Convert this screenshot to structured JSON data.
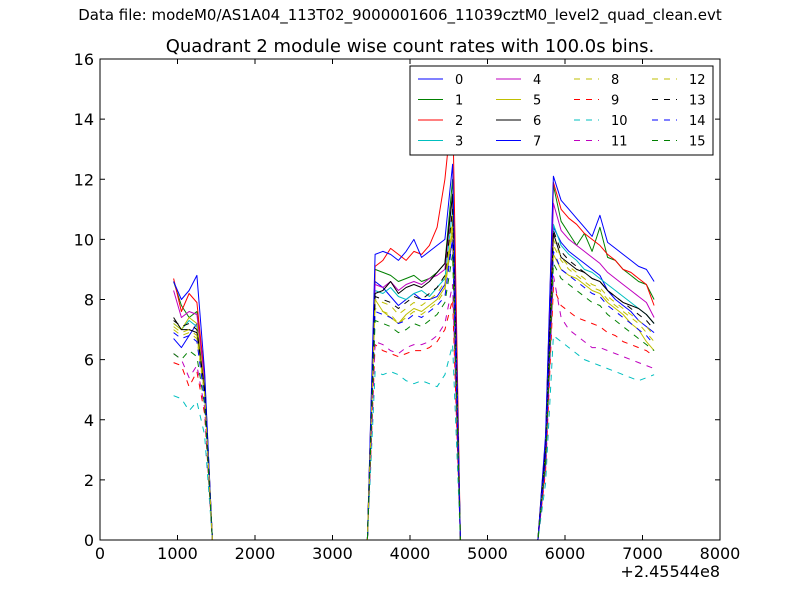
{
  "figure": {
    "suptitle": "Data file: modeM0/AS1A04_113T02_9000001606_11039cztM0_level2_quad_clean.evt"
  },
  "chart_data": {
    "type": "line",
    "title": "Quadrant 2 module wise count rates with 100.0s bins.",
    "xlabel": "",
    "ylabel": "",
    "x_offset_label": "+2.45544e8",
    "xlim": [
      0,
      8000
    ],
    "ylim": [
      0,
      16
    ],
    "xticks": [
      0,
      1000,
      2000,
      3000,
      4000,
      5000,
      6000,
      7000,
      8000
    ],
    "yticks": [
      0,
      2,
      4,
      6,
      8,
      10,
      12,
      14,
      16
    ],
    "legend_position": "top-right",
    "x": [
      950,
      1050,
      1150,
      1250,
      1350,
      1450,
      1550,
      1650,
      1750,
      1850,
      1950,
      2050,
      2150,
      2250,
      2350,
      2450,
      2550,
      2650,
      2750,
      2850,
      2950,
      3050,
      3150,
      3250,
      3350,
      3450,
      3550,
      3650,
      3750,
      3850,
      3950,
      4050,
      4150,
      4250,
      4350,
      4450,
      4550,
      4650,
      4750,
      4850,
      4950,
      5050,
      5150,
      5250,
      5350,
      5450,
      5550,
      5650,
      5750,
      5850,
      5950,
      6050,
      6150,
      6250,
      6350,
      6450,
      6550,
      6650,
      6750,
      6850,
      6950,
      7050,
      7150
    ],
    "series": [
      {
        "name": "0",
        "color": "#0000ff",
        "dash": "solid",
        "values": [
          6.7,
          6.4,
          6.8,
          7.2,
          5.0,
          0,
          0,
          0,
          0,
          0,
          0,
          0,
          0,
          0,
          0,
          0,
          0,
          0,
          0,
          0,
          0,
          0,
          0,
          0,
          0,
          0,
          8.6,
          8.4,
          8.1,
          7.8,
          8.0,
          8.2,
          8.0,
          8.0,
          8.1,
          8.5,
          10.0,
          0,
          0,
          0,
          0,
          0,
          0,
          0,
          0,
          0,
          0,
          0,
          3.0,
          10.4,
          9.9,
          9.6,
          9.4,
          9.2,
          9.0,
          8.8,
          8.3,
          8.0,
          7.8,
          7.6,
          7.3,
          7.1,
          6.9
        ]
      },
      {
        "name": "1",
        "color": "#008000",
        "dash": "solid",
        "values": [
          8.6,
          7.8,
          7.4,
          7.6,
          5.5,
          0,
          0,
          0,
          0,
          0,
          0,
          0,
          0,
          0,
          0,
          0,
          0,
          0,
          0,
          0,
          0,
          0,
          0,
          0,
          0,
          0,
          9.0,
          8.9,
          8.8,
          8.6,
          8.7,
          8.8,
          8.6,
          8.7,
          8.9,
          9.2,
          12.0,
          0,
          0,
          0,
          0,
          0,
          0,
          0,
          0,
          0,
          0,
          0,
          3.3,
          11.8,
          10.6,
          10.2,
          9.8,
          10.2,
          9.6,
          10.4,
          9.4,
          9.3,
          9.0,
          8.8,
          8.6,
          8.5,
          8.0
        ]
      },
      {
        "name": "2",
        "color": "#ff0000",
        "dash": "solid",
        "values": [
          8.7,
          7.6,
          8.2,
          7.9,
          5.4,
          0,
          0,
          0,
          0,
          0,
          0,
          0,
          0,
          0,
          0,
          0,
          0,
          0,
          0,
          0,
          0,
          0,
          0,
          0,
          0,
          0,
          9.1,
          9.3,
          9.7,
          9.5,
          9.3,
          9.6,
          9.5,
          9.8,
          10.4,
          12.0,
          14.5,
          0,
          0,
          0,
          0,
          0,
          0,
          0,
          0,
          0,
          0,
          0,
          3.4,
          11.9,
          11.0,
          10.7,
          10.5,
          10.2,
          10.0,
          9.8,
          9.5,
          9.3,
          9.0,
          8.9,
          8.7,
          8.5,
          7.8
        ]
      },
      {
        "name": "3",
        "color": "#00bfbf",
        "dash": "solid",
        "values": [
          7.2,
          7.0,
          7.3,
          7.1,
          5.2,
          0,
          0,
          0,
          0,
          0,
          0,
          0,
          0,
          0,
          0,
          0,
          0,
          0,
          0,
          0,
          0,
          0,
          0,
          0,
          0,
          0,
          8.3,
          8.2,
          8.4,
          8.1,
          8.0,
          8.2,
          8.3,
          8.1,
          8.4,
          8.7,
          11.0,
          0,
          0,
          0,
          0,
          0,
          0,
          0,
          0,
          0,
          0,
          0,
          3.0,
          10.5,
          9.8,
          9.5,
          9.3,
          9.0,
          8.9,
          8.7,
          8.5,
          8.3,
          8.1,
          7.9,
          7.7,
          7.5,
          7.2
        ]
      },
      {
        "name": "4",
        "color": "#bf00bf",
        "dash": "solid",
        "values": [
          8.3,
          7.4,
          7.6,
          7.5,
          5.3,
          0,
          0,
          0,
          0,
          0,
          0,
          0,
          0,
          0,
          0,
          0,
          0,
          0,
          0,
          0,
          0,
          0,
          0,
          0,
          0,
          0,
          8.5,
          8.4,
          8.6,
          8.3,
          8.5,
          8.6,
          8.5,
          8.7,
          8.8,
          9.0,
          11.5,
          0,
          0,
          0,
          0,
          0,
          0,
          0,
          0,
          0,
          0,
          0,
          3.2,
          11.2,
          10.3,
          10.0,
          9.8,
          9.6,
          9.4,
          9.2,
          8.9,
          8.7,
          8.5,
          8.3,
          8.1,
          7.9,
          7.4
        ]
      },
      {
        "name": "5",
        "color": "#bfbf00",
        "dash": "solid",
        "values": [
          7.2,
          7.0,
          7.4,
          7.2,
          5.1,
          0,
          0,
          0,
          0,
          0,
          0,
          0,
          0,
          0,
          0,
          0,
          0,
          0,
          0,
          0,
          0,
          0,
          0,
          0,
          0,
          0,
          8.0,
          7.6,
          7.4,
          7.2,
          7.5,
          7.7,
          7.6,
          7.8,
          8.0,
          8.4,
          10.5,
          0,
          0,
          0,
          0,
          0,
          0,
          0,
          0,
          0,
          0,
          0,
          2.8,
          9.5,
          9.0,
          8.8,
          8.7,
          8.5,
          8.3,
          8.2,
          7.9,
          7.7,
          7.5,
          7.2,
          7.0,
          6.6,
          6.3
        ]
      },
      {
        "name": "6",
        "color": "#000000",
        "dash": "solid",
        "values": [
          7.4,
          7.0,
          7.0,
          6.9,
          5.0,
          0,
          0,
          0,
          0,
          0,
          0,
          0,
          0,
          0,
          0,
          0,
          0,
          0,
          0,
          0,
          0,
          0,
          0,
          0,
          0,
          0,
          8.2,
          8.3,
          8.6,
          8.2,
          8.4,
          8.5,
          8.4,
          8.6,
          8.9,
          9.2,
          11.5,
          0,
          0,
          0,
          0,
          0,
          0,
          0,
          0,
          0,
          0,
          0,
          3.0,
          10.2,
          9.4,
          9.2,
          9.0,
          8.9,
          8.7,
          8.6,
          8.3,
          8.1,
          7.9,
          7.8,
          7.7,
          7.5,
          7.2
        ]
      },
      {
        "name": "7",
        "color": "#0000ff",
        "dash": "solid",
        "values": [
          8.6,
          8.0,
          8.3,
          8.8,
          5.6,
          0,
          0,
          0,
          0,
          0,
          0,
          0,
          0,
          0,
          0,
          0,
          0,
          0,
          0,
          0,
          0,
          0,
          0,
          0,
          0,
          0,
          9.5,
          9.6,
          9.5,
          9.3,
          9.6,
          10.0,
          9.4,
          9.6,
          9.8,
          10.0,
          12.5,
          0,
          0,
          0,
          0,
          0,
          0,
          0,
          0,
          0,
          0,
          0,
          3.5,
          12.1,
          11.3,
          11.0,
          10.7,
          10.4,
          10.1,
          10.8,
          9.9,
          9.7,
          9.5,
          9.3,
          9.1,
          9.0,
          8.6
        ]
      },
      {
        "name": "8",
        "color": "#bfbf00",
        "dash": "dashed",
        "values": [
          7.0,
          6.8,
          6.9,
          6.7,
          4.8,
          0,
          0,
          0,
          0,
          0,
          0,
          0,
          0,
          0,
          0,
          0,
          0,
          0,
          0,
          0,
          0,
          0,
          0,
          0,
          0,
          0,
          7.7,
          7.6,
          7.5,
          7.2,
          7.4,
          7.6,
          7.5,
          7.7,
          7.9,
          8.3,
          10.3,
          0,
          0,
          0,
          0,
          0,
          0,
          0,
          0,
          0,
          0,
          0,
          2.7,
          9.8,
          9.3,
          9.0,
          8.8,
          8.6,
          8.4,
          8.3,
          8.0,
          7.8,
          7.6,
          7.4,
          7.2,
          6.9,
          6.6
        ]
      },
      {
        "name": "9",
        "color": "#ff0000",
        "dash": "dashed",
        "values": [
          5.9,
          5.8,
          5.1,
          5.6,
          4.2,
          0,
          0,
          0,
          0,
          0,
          0,
          0,
          0,
          0,
          0,
          0,
          0,
          0,
          0,
          0,
          0,
          0,
          0,
          0,
          0,
          0,
          6.5,
          6.3,
          6.2,
          6.1,
          6.2,
          6.3,
          6.3,
          6.4,
          6.6,
          7.0,
          8.0,
          0,
          0,
          0,
          0,
          0,
          0,
          0,
          0,
          0,
          0,
          0,
          2.3,
          8.4,
          7.8,
          7.6,
          7.4,
          7.3,
          7.2,
          7.1,
          6.9,
          6.8,
          6.6,
          6.5,
          6.4,
          6.3,
          6.1
        ]
      },
      {
        "name": "10",
        "color": "#00bfbf",
        "dash": "dashed",
        "values": [
          4.8,
          4.7,
          4.3,
          4.6,
          3.5,
          0,
          0,
          0,
          0,
          0,
          0,
          0,
          0,
          0,
          0,
          0,
          0,
          0,
          0,
          0,
          0,
          0,
          0,
          0,
          0,
          0,
          5.6,
          5.5,
          5.6,
          5.5,
          5.3,
          5.2,
          5.3,
          5.2,
          5.1,
          5.5,
          6.5,
          0,
          0,
          0,
          0,
          0,
          0,
          0,
          0,
          0,
          0,
          0,
          1.9,
          6.8,
          6.6,
          6.4,
          6.2,
          6.0,
          5.9,
          5.8,
          5.7,
          5.6,
          5.5,
          5.4,
          5.3,
          5.4,
          5.5
        ]
      },
      {
        "name": "11",
        "color": "#bf00bf",
        "dash": "dashed",
        "values": [
          6.2,
          6.0,
          5.4,
          5.8,
          4.4,
          0,
          0,
          0,
          0,
          0,
          0,
          0,
          0,
          0,
          0,
          0,
          0,
          0,
          0,
          0,
          0,
          0,
          0,
          0,
          0,
          0,
          6.6,
          6.5,
          6.3,
          6.2,
          6.4,
          6.5,
          6.5,
          6.6,
          6.8,
          7.2,
          8.5,
          0,
          0,
          0,
          0,
          0,
          0,
          0,
          0,
          0,
          0,
          0,
          2.4,
          8.8,
          7.4,
          7.0,
          6.8,
          6.6,
          6.4,
          6.4,
          6.3,
          6.2,
          6.1,
          6.0,
          5.9,
          5.8,
          5.7
        ]
      },
      {
        "name": "12",
        "color": "#bfbf00",
        "dash": "dashed",
        "values": [
          7.1,
          6.9,
          7.0,
          6.8,
          4.9,
          0,
          0,
          0,
          0,
          0,
          0,
          0,
          0,
          0,
          0,
          0,
          0,
          0,
          0,
          0,
          0,
          0,
          0,
          0,
          0,
          0,
          8.0,
          7.9,
          7.8,
          7.5,
          7.7,
          7.9,
          7.8,
          8.0,
          8.2,
          8.6,
          10.8,
          0,
          0,
          0,
          0,
          0,
          0,
          0,
          0,
          0,
          0,
          0,
          2.9,
          10.0,
          9.4,
          9.1,
          8.9,
          8.7,
          8.5,
          8.4,
          8.1,
          7.9,
          7.7,
          7.5,
          7.3,
          7.1,
          6.8
        ]
      },
      {
        "name": "13",
        "color": "#000000",
        "dash": "dashed",
        "values": [
          7.3,
          7.1,
          7.2,
          7.0,
          5.0,
          0,
          0,
          0,
          0,
          0,
          0,
          0,
          0,
          0,
          0,
          0,
          0,
          0,
          0,
          0,
          0,
          0,
          0,
          0,
          0,
          0,
          8.1,
          8.0,
          7.9,
          7.7,
          7.9,
          8.1,
          8.0,
          8.2,
          8.4,
          8.8,
          11.0,
          0,
          0,
          0,
          0,
          0,
          0,
          0,
          0,
          0,
          0,
          0,
          3.0,
          10.3,
          9.6,
          9.3,
          9.1,
          8.9,
          8.7,
          8.6,
          8.3,
          8.1,
          7.9,
          7.7,
          7.5,
          7.3,
          7.0
        ]
      },
      {
        "name": "14",
        "color": "#0000ff",
        "dash": "dashed",
        "values": [
          6.9,
          6.7,
          6.8,
          6.6,
          4.7,
          0,
          0,
          0,
          0,
          0,
          0,
          0,
          0,
          0,
          0,
          0,
          0,
          0,
          0,
          0,
          0,
          0,
          0,
          0,
          0,
          0,
          7.6,
          7.5,
          7.4,
          7.2,
          7.3,
          7.5,
          7.4,
          7.6,
          7.8,
          8.1,
          10.0,
          0,
          0,
          0,
          0,
          0,
          0,
          0,
          0,
          0,
          0,
          0,
          2.7,
          9.6,
          9.0,
          8.8,
          8.6,
          8.4,
          8.2,
          8.1,
          7.8,
          7.6,
          7.4,
          7.2,
          7.0,
          6.8,
          6.5
        ]
      },
      {
        "name": "15",
        "color": "#008000",
        "dash": "dashed",
        "values": [
          6.2,
          6.0,
          6.3,
          6.1,
          4.5,
          0,
          0,
          0,
          0,
          0,
          0,
          0,
          0,
          0,
          0,
          0,
          0,
          0,
          0,
          0,
          0,
          0,
          0,
          0,
          0,
          0,
          7.3,
          7.2,
          7.1,
          6.9,
          7.0,
          7.2,
          7.1,
          7.3,
          7.5,
          7.9,
          9.5,
          0,
          0,
          0,
          0,
          0,
          0,
          0,
          0,
          0,
          0,
          0,
          2.6,
          9.2,
          8.7,
          8.5,
          8.3,
          8.1,
          7.9,
          7.8,
          7.5,
          7.3,
          7.1,
          6.9,
          6.7,
          6.5,
          6.3
        ]
      }
    ]
  }
}
